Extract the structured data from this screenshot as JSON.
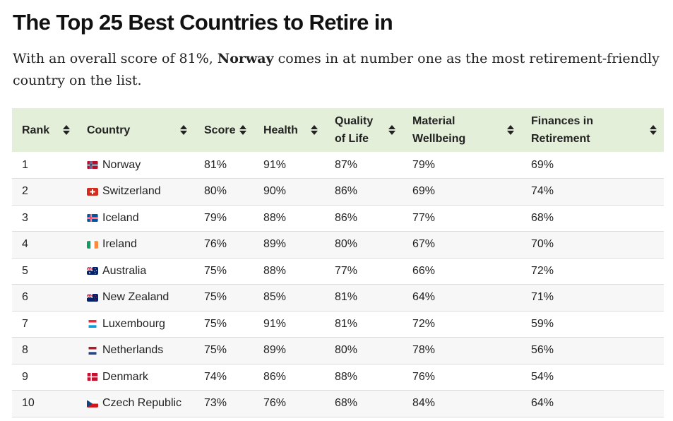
{
  "header": {
    "title": "The Top 25 Best Countries to Retire in",
    "subtitle_before": "With an overall score of 81%, ",
    "subtitle_bold": "Norway",
    "subtitle_after": " comes in at number one as the most retirement-friendly country on the list."
  },
  "table": {
    "columns": [
      "Rank",
      "Country",
      "Score",
      "Health",
      "Quality of Life",
      "Material Wellbeing",
      "Finances in Retirement"
    ],
    "rows": [
      {
        "rank": "1",
        "flag": "norway-flag-icon",
        "country": "Norway",
        "score": "81%",
        "health": "91%",
        "quality": "87%",
        "material": "79%",
        "finances": "69%"
      },
      {
        "rank": "2",
        "flag": "switzerland-flag-icon",
        "country": "Switzerland",
        "score": "80%",
        "health": "90%",
        "quality": "86%",
        "material": "69%",
        "finances": "74%"
      },
      {
        "rank": "3",
        "flag": "iceland-flag-icon",
        "country": "Iceland",
        "score": "79%",
        "health": "88%",
        "quality": "86%",
        "material": "77%",
        "finances": "68%"
      },
      {
        "rank": "4",
        "flag": "ireland-flag-icon",
        "country": "Ireland",
        "score": "76%",
        "health": "89%",
        "quality": "80%",
        "material": "67%",
        "finances": "70%"
      },
      {
        "rank": "5",
        "flag": "australia-flag-icon",
        "country": "Australia",
        "score": "75%",
        "health": "88%",
        "quality": "77%",
        "material": "66%",
        "finances": "72%"
      },
      {
        "rank": "6",
        "flag": "new-zealand-flag-icon",
        "country": "New Zealand",
        "score": "75%",
        "health": "85%",
        "quality": "81%",
        "material": "64%",
        "finances": "71%"
      },
      {
        "rank": "7",
        "flag": "luxembourg-flag-icon",
        "country": "Luxembourg",
        "score": "75%",
        "health": "91%",
        "quality": "81%",
        "material": "72%",
        "finances": "59%"
      },
      {
        "rank": "8",
        "flag": "netherlands-flag-icon",
        "country": "Netherlands",
        "score": "75%",
        "health": "89%",
        "quality": "80%",
        "material": "78%",
        "finances": "56%"
      },
      {
        "rank": "9",
        "flag": "denmark-flag-icon",
        "country": "Denmark",
        "score": "74%",
        "health": "86%",
        "quality": "88%",
        "material": "76%",
        "finances": "54%"
      },
      {
        "rank": "10",
        "flag": "czech-flag-icon",
        "country": "Czech Republic",
        "score": "73%",
        "health": "76%",
        "quality": "68%",
        "material": "84%",
        "finances": "64%"
      }
    ]
  },
  "colors": {
    "header_bg": "#e4efd9",
    "row_alt_bg": "#f7f7f7",
    "row_border": "#dcdcdc"
  }
}
